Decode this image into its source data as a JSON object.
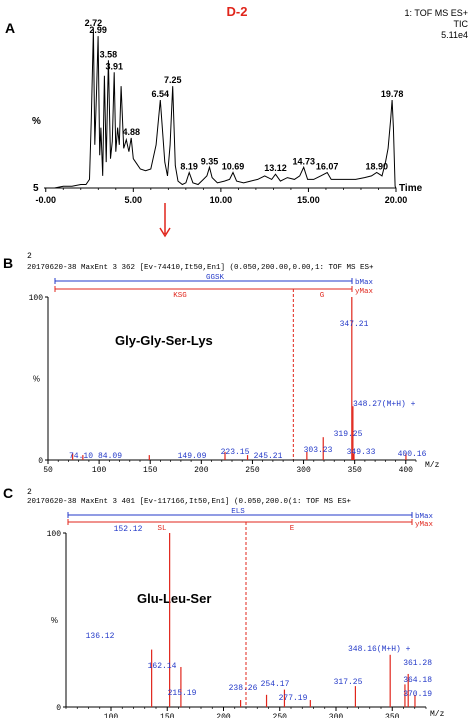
{
  "chart_data": [
    {
      "panel": "A",
      "type": "line",
      "title": "D-2",
      "info": [
        "1: TOF MS ES+",
        "TIC",
        "5.11e4"
      ],
      "ylabel": "%",
      "ybottom_label": "5",
      "xlabel": "Time",
      "xlim": [
        -0.1,
        20.0
      ],
      "ylim": [
        5,
        100
      ],
      "xticks": [
        0.0,
        5.0,
        10.0,
        15.0,
        20.0
      ],
      "xtick_labels": [
        "-0.00",
        "5.00",
        "10.00",
        "15.00",
        "20.00"
      ],
      "series": [
        {
          "x": [
            -0.1,
            0.5,
            1.0,
            1.5,
            2.0,
            2.3,
            2.5,
            2.6,
            2.72,
            2.8,
            2.9,
            2.99,
            3.08,
            3.15,
            3.25,
            3.35,
            3.45,
            3.58,
            3.7,
            3.8,
            3.91,
            4.0,
            4.1,
            4.2,
            4.3,
            4.45,
            4.6,
            4.75,
            4.88,
            5.0,
            5.2,
            5.4,
            5.7,
            6.0,
            6.3,
            6.54,
            6.8,
            6.95,
            7.1,
            7.25,
            7.4,
            7.55,
            7.8,
            8.0,
            8.19,
            8.4,
            8.7,
            9.0,
            9.2,
            9.35,
            9.5,
            9.8,
            10.2,
            10.5,
            10.69,
            10.9,
            11.3,
            11.7,
            12.1,
            12.5,
            12.9,
            13.12,
            13.4,
            13.8,
            14.2,
            14.5,
            14.73,
            14.95,
            15.3,
            15.7,
            16.07,
            16.3,
            16.7,
            17.2,
            17.7,
            18.2,
            18.6,
            18.9,
            19.2,
            19.4,
            19.55,
            19.7,
            19.78,
            19.85,
            19.95,
            20.0
          ],
          "y": [
            5,
            5,
            6,
            6,
            7,
            7,
            10,
            45,
            97,
            30,
            60,
            93,
            24,
            40,
            12,
            70,
            20,
            79,
            22,
            32,
            72,
            26,
            40,
            30,
            64,
            28,
            33,
            26,
            34,
            22,
            19,
            16,
            15,
            16,
            30,
            56,
            20,
            12,
            30,
            64,
            18,
            9,
            7,
            8,
            14,
            8,
            7,
            10,
            12,
            17,
            11,
            8,
            9,
            10,
            14,
            9,
            8,
            9,
            10,
            12,
            10,
            13,
            9,
            11,
            10,
            12,
            17,
            10,
            10,
            12,
            14,
            10,
            10,
            10,
            10,
            11,
            12,
            14,
            12,
            20,
            28,
            45,
            56,
            40,
            6,
            5
          ]
        }
      ],
      "peak_labels": [
        {
          "x": 2.72,
          "y": 97,
          "label": "2.72"
        },
        {
          "x": 2.99,
          "y": 93,
          "label": "2.99"
        },
        {
          "x": 3.58,
          "y": 79,
          "label": "3.58"
        },
        {
          "x": 3.91,
          "y": 72,
          "label": "3.91"
        },
        {
          "x": 4.88,
          "y": 34,
          "label": "4.88"
        },
        {
          "x": 6.54,
          "y": 56,
          "label": "6.54"
        },
        {
          "x": 7.25,
          "y": 64,
          "label": "7.25"
        },
        {
          "x": 8.19,
          "y": 14,
          "label": "8.19"
        },
        {
          "x": 9.35,
          "y": 17,
          "label": "9.35"
        },
        {
          "x": 10.69,
          "y": 14,
          "label": "10.69"
        },
        {
          "x": 13.12,
          "y": 13,
          "label": "13.12"
        },
        {
          "x": 14.73,
          "y": 17,
          "label": "14.73"
        },
        {
          "x": 16.07,
          "y": 14,
          "label": "16.07"
        },
        {
          "x": 18.9,
          "y": 14,
          "label": "18.90"
        },
        {
          "x": 19.78,
          "y": 56,
          "label": "19.78"
        }
      ],
      "marker_x": 7.25
    },
    {
      "panel": "B",
      "type": "bar",
      "header_line1": "2",
      "header_line2": "20170620-38   MaxEnt 3   362 [Ev-74410,It50,En1] (0.050,200.00,0.00,1: TOF MS ES+",
      "ion_series": {
        "b_seq": "GGSK",
        "b_label": "bMax",
        "y_seq": "KSG",
        "y_mid": "G",
        "y_label": "yMax"
      },
      "annotation": "Gly-Gly-Ser-Lys",
      "xlabel": "M/z",
      "xlim": [
        50,
        410
      ],
      "ylim": [
        0,
        100
      ],
      "xticks": [
        50,
        100,
        150,
        200,
        250,
        300,
        350,
        400
      ],
      "yticks": [
        0,
        100
      ],
      "ytick_labels": [
        "0",
        "100"
      ],
      "ylabel": "%",
      "dashed_x": 290,
      "peaks": [
        {
          "x": 74.1,
          "y": 4,
          "label": "74.10"
        },
        {
          "x": 84.09,
          "y": 3,
          "label": "84.09"
        },
        {
          "x": 149.09,
          "y": 3,
          "label": "149.09"
        },
        {
          "x": 223.15,
          "y": 5,
          "label": "223.15"
        },
        {
          "x": 245.21,
          "y": 3,
          "label": "245.21"
        },
        {
          "x": 303.23,
          "y": 5,
          "label": "303.23"
        },
        {
          "x": 319.25,
          "y": 14,
          "label": "319.25"
        },
        {
          "x": 347.21,
          "y": 100,
          "label": "347.21"
        },
        {
          "x": 348.27,
          "y": 33,
          "label": "348.27(M+H)  +"
        },
        {
          "x": 349.33,
          "y": 4,
          "label": "349.33"
        },
        {
          "x": 400.16,
          "y": 4,
          "label": "400.16"
        }
      ]
    },
    {
      "panel": "C",
      "type": "bar",
      "header_line1": "2",
      "header_line2": "20170620-38   MaxEnt 3   401 [Ev-117166,It50,En1] (0.050,200.0(1: TOF MS ES+",
      "ion_series": {
        "b_seq": "ELS",
        "b_label": "bMax",
        "y_left": "SL",
        "y_mid": "E",
        "y_label": "yMax"
      },
      "annotation": "Glu-Leu-Ser",
      "xlabel": "M/z",
      "xlim": [
        60,
        380
      ],
      "ylim": [
        0,
        100
      ],
      "xticks": [
        100,
        150,
        200,
        250,
        300,
        350
      ],
      "yticks": [
        0,
        100
      ],
      "ytick_labels": [
        "0",
        "100"
      ],
      "ylabel": "%",
      "dashed_x": 220,
      "peaks": [
        {
          "x": 136.12,
          "y": 33,
          "label": "136.12"
        },
        {
          "x": 152.12,
          "y": 100,
          "label": "152.12"
        },
        {
          "x": 162.14,
          "y": 23,
          "label": "162.14"
        },
        {
          "x": 215.19,
          "y": 4,
          "label": "215.19"
        },
        {
          "x": 238.26,
          "y": 7,
          "label": "238.26"
        },
        {
          "x": 254.17,
          "y": 10,
          "label": "254.17"
        },
        {
          "x": 277.19,
          "y": 4,
          "label": "277.19"
        },
        {
          "x": 317.25,
          "y": 12,
          "label": "317.25"
        },
        {
          "x": 348.16,
          "y": 30,
          "label": "348.16(M+H) +"
        },
        {
          "x": 361.28,
          "y": 13,
          "label": "361.28"
        },
        {
          "x": 364.18,
          "y": 19,
          "label": "364.18"
        },
        {
          "x": 370.19,
          "y": 7,
          "label": "370.19"
        }
      ]
    }
  ]
}
